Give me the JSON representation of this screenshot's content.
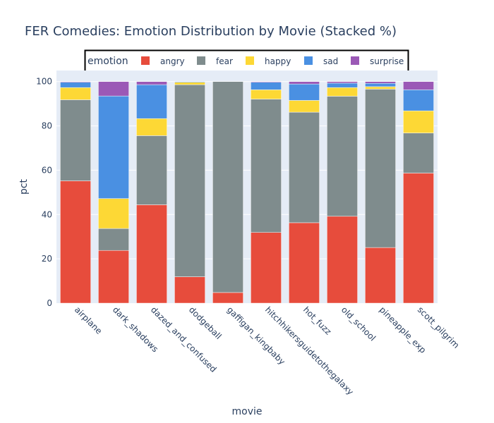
{
  "chart_data": {
    "type": "bar",
    "stacked": true,
    "title": "FER Comedies: Emotion Distribution by Movie (Stacked %)",
    "xlabel": "movie",
    "ylabel": "pct",
    "ylim": [
      0,
      105
    ],
    "yticks": [
      0,
      20,
      40,
      60,
      80,
      100
    ],
    "legend_title": "emotion",
    "categories": [
      "airplane",
      "dark_shadows",
      "dazed_and_confused",
      "dodgeball",
      "gaffigan_kingbaby",
      "hitchhikersguidetothegalaxy",
      "hot_fuzz",
      "old_school",
      "pineapple_exp",
      "scott_pilgrim"
    ],
    "series": [
      {
        "name": "angry",
        "color": "#e74c3c",
        "values": [
          55.2,
          23.8,
          44.4,
          11.9,
          4.8,
          31.9,
          36.3,
          39.2,
          25.1,
          58.7
        ]
      },
      {
        "name": "fear",
        "color": "#7f8c8d",
        "values": [
          36.6,
          9.9,
          31.2,
          86.7,
          95.2,
          60.2,
          49.9,
          54.2,
          71.5,
          18.1
        ]
      },
      {
        "name": "happy",
        "color": "#fdd835",
        "values": [
          5.5,
          13.5,
          7.7,
          1.1,
          0,
          4.2,
          5.3,
          3.9,
          1.1,
          10.0
        ]
      },
      {
        "name": "sad",
        "color": "#4a90e2",
        "values": [
          2.4,
          46.3,
          15.3,
          0.3,
          0,
          3.4,
          7.4,
          2.0,
          1.5,
          9.5
        ]
      },
      {
        "name": "surprise",
        "color": "#9b59b6",
        "values": [
          0.3,
          6.5,
          1.4,
          0,
          0,
          0.3,
          1.1,
          0.7,
          0.8,
          3.7
        ]
      }
    ]
  }
}
